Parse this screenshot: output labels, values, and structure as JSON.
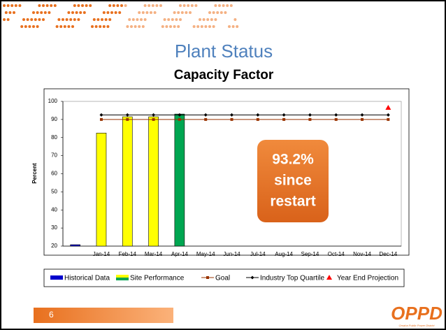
{
  "slide": {
    "title": "Plant Status",
    "page_number": "6",
    "logo": "OPPD",
    "logo_subtitle": "Omaha Public Power District"
  },
  "chart_data": {
    "type": "bar",
    "title": "Capacity Factor",
    "y_label": "Percent",
    "categories": [
      null,
      "Jan-14",
      "Feb-14",
      "Mar-14",
      "Apr-14",
      "May-14",
      "Jun-14",
      "Jul-14",
      "Aug-14",
      "Sep-14",
      "Oct-14",
      "Nov-14",
      "Dec-14"
    ],
    "ylim": [
      20,
      100
    ],
    "yticks": [
      20,
      30,
      40,
      50,
      60,
      70,
      80,
      90,
      100
    ],
    "series": [
      {
        "name": "Historical Data",
        "type": "bar",
        "color": "#0000cc",
        "values": [
          20,
          null,
          null,
          null,
          null,
          null,
          null,
          null,
          null,
          null,
          null,
          null,
          null
        ]
      },
      {
        "name": "Site Performance",
        "type": "bar",
        "color": "#ffff00",
        "colors": [
          null,
          "#ffff00",
          "#ffff00",
          "#ffff00",
          "#00a651",
          null,
          null,
          null,
          null,
          null,
          null,
          null,
          null
        ],
        "values": [
          null,
          82.5,
          91.5,
          91.5,
          93,
          null,
          null,
          null,
          null,
          null,
          null,
          null,
          null
        ]
      },
      {
        "name": "Goal",
        "type": "line",
        "marker": "square",
        "color": "#993300",
        "values": [
          null,
          90,
          90,
          90,
          90,
          90,
          90,
          90,
          90,
          90,
          90,
          90,
          90
        ]
      },
      {
        "name": "Industry Top Quartile",
        "type": "line",
        "marker": "diamond",
        "color": "#000000",
        "values": [
          null,
          92.5,
          92.5,
          92.5,
          92.5,
          92.5,
          92.5,
          92.5,
          92.5,
          92.5,
          92.5,
          92.5,
          92.5
        ]
      },
      {
        "name": "Year End Projection",
        "type": "scatter",
        "marker": "triangle",
        "color": "#ff0000",
        "values": [
          null,
          null,
          null,
          null,
          null,
          null,
          null,
          null,
          null,
          null,
          null,
          null,
          96.5
        ]
      }
    ],
    "annotation": [
      "93.2%",
      "since",
      "restart"
    ]
  }
}
